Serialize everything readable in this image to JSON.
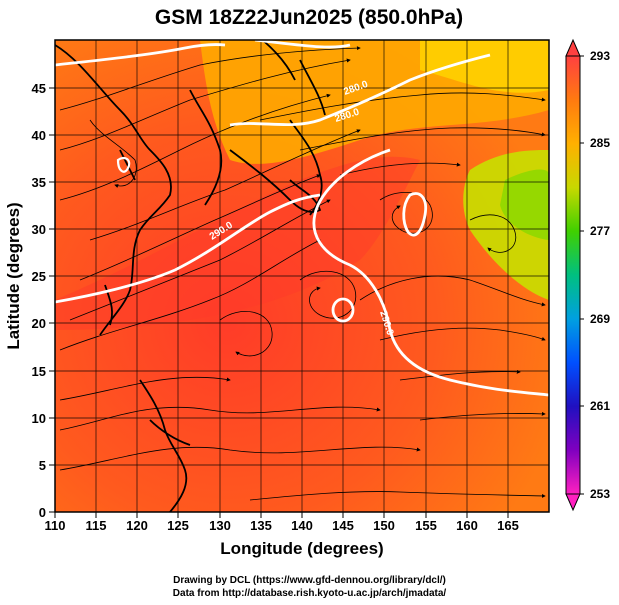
{
  "title": "GSM 18Z22Jun2025 (850.0hPa)",
  "xlabel": "Longitude (degrees)",
  "ylabel": "Latitude  (degrees)",
  "x_ticks": [
    "110",
    "115",
    "120",
    "125",
    "130",
    "135",
    "140",
    "145",
    "150",
    "155",
    "160",
    "165"
  ],
  "y_ticks": [
    "0",
    "5",
    "10",
    "15",
    "20",
    "25",
    "30",
    "35",
    "40",
    "45"
  ],
  "colorbar": {
    "ticks": [
      "293",
      "285",
      "277",
      "269",
      "261",
      "253"
    ],
    "colors": [
      "#ff4040",
      "#ff7a10",
      "#ffb000",
      "#d8d800",
      "#60d000",
      "#00c060",
      "#00b0b0",
      "#0090ff",
      "#0040ff",
      "#2010c0",
      "#6000c0",
      "#b000c0",
      "#ff20c0"
    ]
  },
  "contour_labels": [
    "280.0",
    "280.0",
    "290.0",
    "290.0"
  ],
  "credits": {
    "line1": "Drawing by DCL (https://www.gfd-dennou.org/library/dcl/)",
    "line2": "Data from http://database.rish.kyoto-u.ac.jp/arch/jmadata/"
  },
  "chart_data": {
    "type": "heatmap",
    "title": "GSM 18Z22Jun2025 (850.0hPa)",
    "xlabel": "Longitude (degrees)",
    "ylabel": "Latitude  (degrees)",
    "xlim": [
      110,
      170
    ],
    "ylim": [
      0,
      50
    ],
    "colorbar_range": [
      253,
      293
    ],
    "colorbar_ticks": [
      293,
      285,
      277,
      269,
      261,
      253
    ],
    "contour_levels": [
      280.0,
      290.0
    ],
    "grid": true
  }
}
